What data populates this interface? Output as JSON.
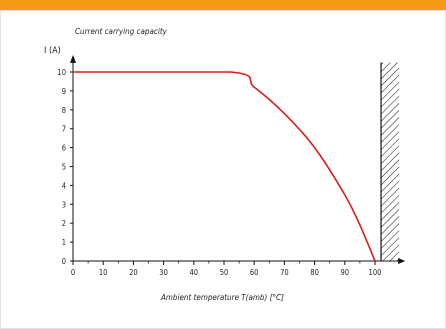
{
  "colors": {
    "top_bar": "#f39a17",
    "curve": "#d81e1e",
    "axis": "#111111",
    "hatch": "#111111"
  },
  "chart_data": {
    "type": "line",
    "title": "Current carrying capacity",
    "ylabel": "I (A)",
    "xlabel": "Ambient temperature T(amb) [°C]",
    "xlim": [
      0,
      110
    ],
    "ylim": [
      0,
      10.8
    ],
    "x_ticks": [
      0,
      10,
      20,
      30,
      40,
      50,
      60,
      70,
      80,
      90,
      100
    ],
    "y_ticks": [
      0,
      1,
      2,
      3,
      4,
      5,
      6,
      7,
      8,
      9,
      10
    ],
    "grid": false,
    "series": [
      {
        "x": [
          0,
          52,
          60,
          70,
          80,
          90,
          95,
          100
        ],
        "y": [
          10,
          10,
          9.2,
          7.8,
          6.0,
          3.5,
          1.9,
          0
        ]
      }
    ],
    "hatched_region": {
      "x_start": 102,
      "x_end": 108,
      "y_top": 10.5
    }
  }
}
